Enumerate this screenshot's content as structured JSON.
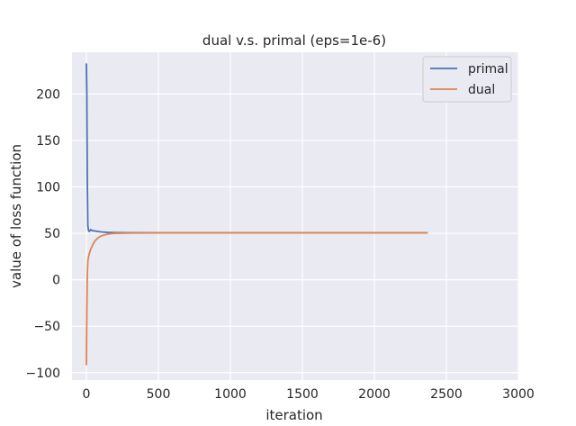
{
  "chart_data": {
    "type": "line",
    "title": "dual v.s. primal (eps=1e-6)",
    "xlabel": "iteration",
    "ylabel": "value of loss function",
    "xlim": [
      -100,
      3000
    ],
    "ylim": [
      -108,
      245
    ],
    "xticks": [
      0,
      500,
      1000,
      1500,
      2000,
      2500,
      3000
    ],
    "yticks": [
      -100,
      -50,
      0,
      50,
      100,
      150,
      200
    ],
    "xtick_labels": [
      "0",
      "500",
      "1000",
      "1500",
      "2000",
      "2500",
      "3000"
    ],
    "ytick_labels": [
      "−100",
      "−50",
      "0",
      "50",
      "100",
      "150",
      "200"
    ],
    "grid": true,
    "legend_position": "top-right",
    "colors": {
      "background": "#eaeaf2",
      "grid": "#ffffff",
      "primal": "#4c72b0",
      "dual": "#dd8452"
    },
    "series": [
      {
        "name": "primal",
        "x": [
          0,
          3,
          6,
          10,
          15,
          20,
          30,
          40,
          60,
          100,
          150,
          200,
          300,
          500,
          1000,
          1500,
          2000,
          2370
        ],
        "y": [
          233,
          200,
          110,
          58,
          53,
          52,
          54,
          53,
          52.5,
          51.5,
          51,
          50.8,
          50.6,
          50.5,
          50.5,
          50.5,
          50.5,
          50.5
        ]
      },
      {
        "name": "dual",
        "x": [
          0,
          3,
          6,
          10,
          15,
          20,
          30,
          45,
          60,
          80,
          100,
          130,
          160,
          200,
          300,
          500,
          1000,
          1500,
          2000,
          2370
        ],
        "y": [
          -92,
          -40,
          5,
          20,
          25,
          28,
          33,
          38,
          42,
          45,
          47,
          48.5,
          49.5,
          50,
          50.3,
          50.5,
          50.5,
          50.5,
          50.5,
          50.5
        ]
      }
    ]
  }
}
